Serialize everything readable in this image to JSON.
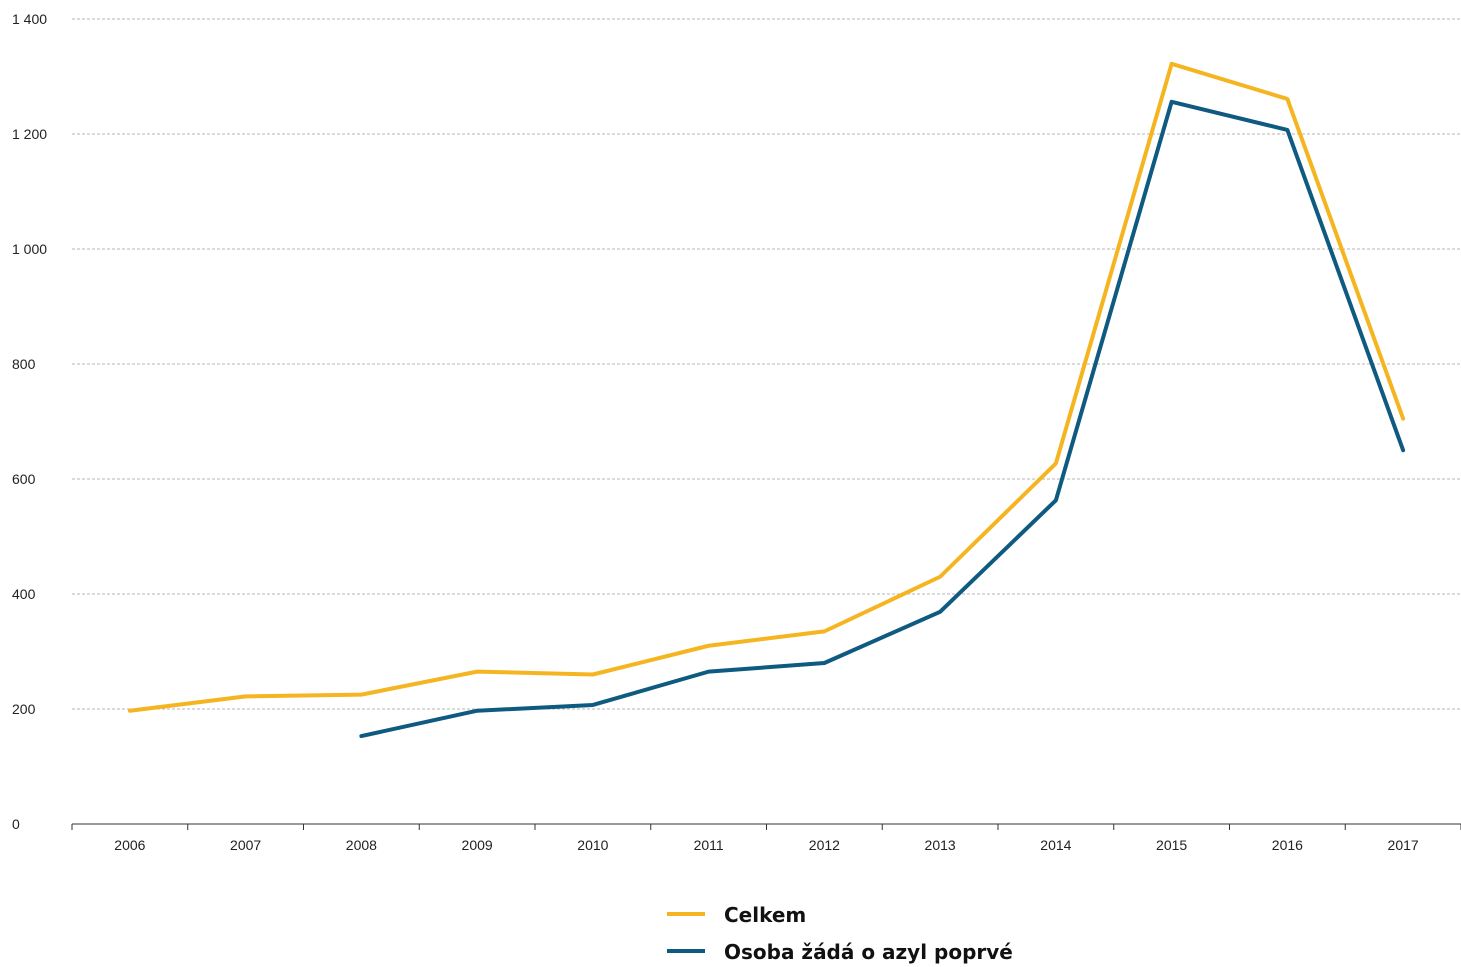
{
  "chart_data": {
    "type": "line",
    "title": "",
    "xlabel": "",
    "ylabel": "",
    "x": [
      "2006",
      "2007",
      "2008",
      "2009",
      "2010",
      "2011",
      "2012",
      "2013",
      "2014",
      "2015",
      "2016",
      "2017"
    ],
    "ylim": [
      0,
      1400
    ],
    "yticks": [
      {
        "value": 0,
        "label": "0"
      },
      {
        "value": 200,
        "label": "200"
      },
      {
        "value": 400,
        "label": "400"
      },
      {
        "value": 600,
        "label": "600"
      },
      {
        "value": 800,
        "label": "800"
      },
      {
        "value": 1000,
        "label": "1 000"
      },
      {
        "value": 1200,
        "label": "1 200"
      },
      {
        "value": 1400,
        "label": "1 400"
      }
    ],
    "grid": "horizontal dashed",
    "legend_position": "bottom-center",
    "series": [
      {
        "name": "Celkem",
        "color": "#f5b521",
        "values": [
          197,
          222,
          225,
          265,
          260,
          310,
          335,
          430,
          627,
          1322,
          1261,
          705
        ]
      },
      {
        "name": "Osoba žádá o azyl poprvé",
        "color": "#0e5a80",
        "values": [
          null,
          null,
          153,
          197,
          207,
          265,
          280,
          369,
          563,
          1256,
          1207,
          650
        ]
      }
    ]
  }
}
